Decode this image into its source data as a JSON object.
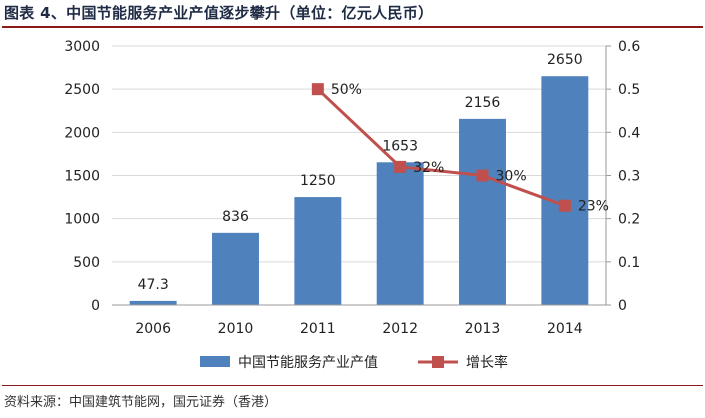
{
  "figure": {
    "title": "图表 4、中国节能服务产业产值逐步攀升（单位：亿元人民币）",
    "source": "资料来源：中国建筑节能网，国元证券（香港）"
  },
  "colors": {
    "bar": "#4f81bd",
    "line": "#c0504d",
    "title_rule": "#8b1a1a",
    "axis": "#9a9a9a",
    "grid": "#d9d9d9"
  },
  "chart_data": {
    "type": "bar",
    "categories": [
      "2006",
      "2010",
      "2011",
      "2012",
      "2013",
      "2014"
    ],
    "series": [
      {
        "name": "中国节能服务产业产值",
        "type": "bar",
        "axis": "left",
        "values": [
          47.3,
          836,
          1250,
          1653,
          2156,
          2650
        ],
        "labels": [
          "47.3",
          "836",
          "1250",
          "1653",
          "2156",
          "2650"
        ]
      },
      {
        "name": "增长率",
        "type": "line",
        "axis": "right",
        "values": [
          null,
          null,
          0.5,
          0.32,
          0.3,
          0.23
        ],
        "labels": [
          "",
          "",
          "50%",
          "32%",
          "30%",
          "23%"
        ]
      }
    ],
    "y_left": {
      "min": 0,
      "max": 3000,
      "step": 500,
      "ticks": [
        "0",
        "500",
        "1000",
        "1500",
        "2000",
        "2500",
        "3000"
      ]
    },
    "y_right": {
      "min": 0,
      "max": 0.6,
      "step": 0.1,
      "ticks": [
        "0",
        "0.1",
        "0.2",
        "0.3",
        "0.4",
        "0.5",
        "0.6"
      ]
    },
    "grid": true,
    "legend_position": "bottom"
  }
}
